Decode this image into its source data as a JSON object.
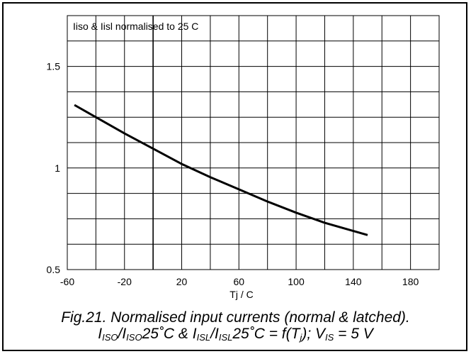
{
  "chart_data": {
    "type": "line",
    "title": "Iiso & Iisl normalised to 25 C",
    "xlabel": "Tj / C",
    "ylabel": "",
    "xlim": [
      -60,
      200
    ],
    "ylim": [
      0.5,
      1.75
    ],
    "x_ticks": [
      -60,
      -20,
      20,
      60,
      100,
      140,
      180
    ],
    "y_ticks": [
      0.5,
      1,
      1.5
    ],
    "x_tick_labels": [
      "-60",
      "-20",
      "20",
      "60",
      "100",
      "140",
      "180"
    ],
    "y_tick_labels": [
      "0.5",
      "1",
      "1.5"
    ],
    "x_grid_step": 20,
    "y_grid_step": 0.125,
    "grid": true,
    "series": [
      {
        "x": [
          -55,
          -40,
          -20,
          0,
          20,
          40,
          60,
          80,
          100,
          120,
          140,
          150
        ],
        "y": [
          1.31,
          1.25,
          1.17,
          1.095,
          1.02,
          0.955,
          0.895,
          0.835,
          0.78,
          0.73,
          0.69,
          0.67
        ]
      }
    ]
  },
  "caption": {
    "line1": "Fig.21.  Normalised input currents (normal & latched).",
    "line2_parts": {
      "i": "I",
      "iso": "ISO",
      "slash": "/",
      "t25": "25˚C & ",
      "isl": "ISL",
      "t25b": "25˚C = f(T",
      "j": "j",
      "tail": "); V",
      "is": "IS",
      "end": " = 5 V"
    }
  },
  "colors": {
    "line": "#000000",
    "grid": "#000000",
    "background": "#ffffff"
  }
}
